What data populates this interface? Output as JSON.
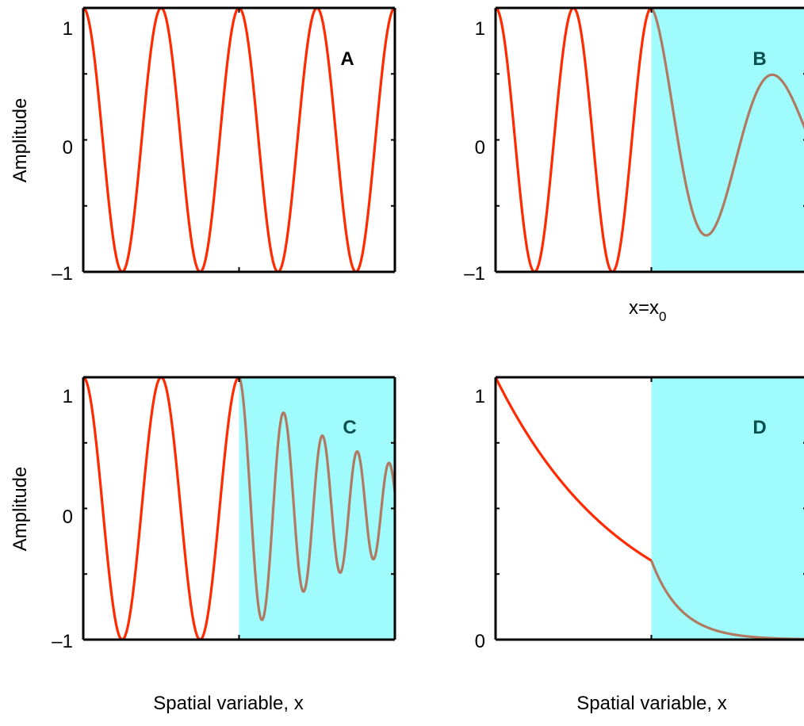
{
  "figure": {
    "x0_label": "x=x",
    "x0_subscript": "0",
    "colors": {
      "incident": "#ff2a00",
      "transmitted": "#b07a62",
      "medium": "#a0fcfc",
      "axis": "#000000",
      "letter_dark": "#0b4f4f"
    }
  },
  "chart_data": [
    {
      "type": "line",
      "panel": "A",
      "ylabel": "Amplitude",
      "xlabel": "",
      "ylim": [
        -1,
        1
      ],
      "xlim": [
        0,
        4
      ],
      "yticks": [
        "1",
        "0",
        "–1"
      ],
      "ytick_values": [
        1,
        0,
        -1
      ],
      "boundary": null,
      "shaded": false,
      "series": [
        {
          "role": "incident",
          "formula": "cos(2*pi*x)",
          "x_range": [
            0,
            4
          ],
          "amplitude": 1,
          "periods": 4
        }
      ]
    },
    {
      "type": "line",
      "panel": "B",
      "ylabel": "",
      "xlabel": "",
      "ylim": [
        -1,
        1
      ],
      "xlim": [
        0,
        4
      ],
      "yticks": [
        "1",
        "0",
        "–1"
      ],
      "ytick_values": [
        1,
        0,
        -1
      ],
      "boundary": 2,
      "shaded": true,
      "series": [
        {
          "role": "incident",
          "formula": "cos(2*pi*x)",
          "x_range": [
            0,
            2
          ]
        },
        {
          "role": "transmitted",
          "formula": "exp(-0.6*(x-2))*cos(1.9*pi*(x-2)^0.85)",
          "x_range": [
            2,
            4
          ],
          "peak": 0.45,
          "trough": -0.68
        }
      ]
    },
    {
      "type": "line",
      "panel": "C",
      "ylabel": "Amplitude",
      "xlabel": "Spatial variable, x",
      "ylim": [
        -1,
        1
      ],
      "xlim": [
        0,
        4
      ],
      "yticks": [
        "1",
        "0",
        "–1"
      ],
      "ytick_values": [
        1,
        0,
        -1
      ],
      "boundary": 2,
      "shaded": true,
      "series": [
        {
          "role": "incident",
          "formula": "cos(2*pi*x)",
          "x_range": [
            0,
            2
          ]
        },
        {
          "role": "transmitted",
          "formula": "damped chirp",
          "x_range": [
            2,
            4
          ],
          "peak": 0.5,
          "trough": -0.68
        }
      ]
    },
    {
      "type": "line",
      "panel": "D",
      "ylabel": "",
      "xlabel": "Spatial variable, x",
      "ylim": [
        0,
        1
      ],
      "xlim": [
        0,
        4
      ],
      "yticks": [
        "1",
        "0"
      ],
      "ytick_values": [
        1,
        0
      ],
      "boundary": 2,
      "shaded": true,
      "series": [
        {
          "role": "incident",
          "formula": "exp(-0.6*x)",
          "x_range": [
            0,
            2
          ],
          "end_value": 0.3
        },
        {
          "role": "transmitted",
          "formula": "0.3*exp(-2.5*(x-2))",
          "x_range": [
            2,
            4
          ]
        }
      ]
    }
  ]
}
